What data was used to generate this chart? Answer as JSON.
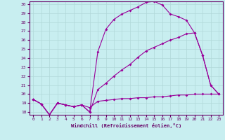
{
  "xlabel": "Windchill (Refroidissement éolien,°C)",
  "xlim": [
    -0.5,
    23.5
  ],
  "ylim": [
    17.7,
    30.3
  ],
  "yticks": [
    18,
    19,
    20,
    21,
    22,
    23,
    24,
    25,
    26,
    27,
    28,
    29,
    30
  ],
  "xticks": [
    0,
    1,
    2,
    3,
    4,
    5,
    6,
    7,
    8,
    9,
    10,
    11,
    12,
    13,
    14,
    15,
    16,
    17,
    18,
    19,
    20,
    21,
    22,
    23
  ],
  "background_color": "#c8eef0",
  "grid_color": "#b0d8d8",
  "line_color": "#990099",
  "line1_x": [
    0,
    1,
    2,
    3,
    4,
    5,
    6,
    7,
    8,
    9,
    10,
    11,
    12,
    13,
    14,
    15,
    16,
    17,
    18,
    19,
    20,
    21,
    22,
    23
  ],
  "line1_y": [
    19.4,
    18.9,
    17.7,
    19.0,
    18.8,
    18.6,
    18.8,
    18.5,
    19.2,
    19.3,
    19.4,
    19.5,
    19.5,
    19.6,
    19.6,
    19.7,
    19.7,
    19.8,
    19.9,
    19.9,
    20.0,
    20.0,
    20.0,
    20.0
  ],
  "line2_x": [
    0,
    1,
    2,
    3,
    4,
    5,
    6,
    7,
    8,
    9,
    10,
    11,
    12,
    13,
    14,
    15,
    16,
    17,
    18,
    19,
    20,
    21,
    22,
    23
  ],
  "line2_y": [
    19.4,
    18.9,
    17.7,
    19.0,
    18.8,
    18.6,
    18.8,
    18.0,
    24.7,
    27.2,
    28.3,
    28.9,
    29.3,
    29.7,
    30.2,
    30.3,
    29.9,
    28.9,
    28.6,
    28.2,
    26.8,
    24.3,
    21.0,
    20.0
  ],
  "line3_x": [
    0,
    1,
    2,
    3,
    4,
    5,
    6,
    7,
    8,
    9,
    10,
    11,
    12,
    13,
    14,
    15,
    16,
    17,
    18,
    19,
    20,
    21,
    22,
    23
  ],
  "line3_y": [
    19.4,
    18.9,
    17.7,
    19.0,
    18.8,
    18.6,
    18.8,
    18.0,
    20.5,
    21.2,
    22.0,
    22.7,
    23.3,
    24.1,
    24.8,
    25.2,
    25.6,
    26.0,
    26.3,
    26.7,
    26.8,
    24.3,
    21.0,
    20.0
  ],
  "marker": "D",
  "markersize": 2.0,
  "linewidth": 0.8
}
